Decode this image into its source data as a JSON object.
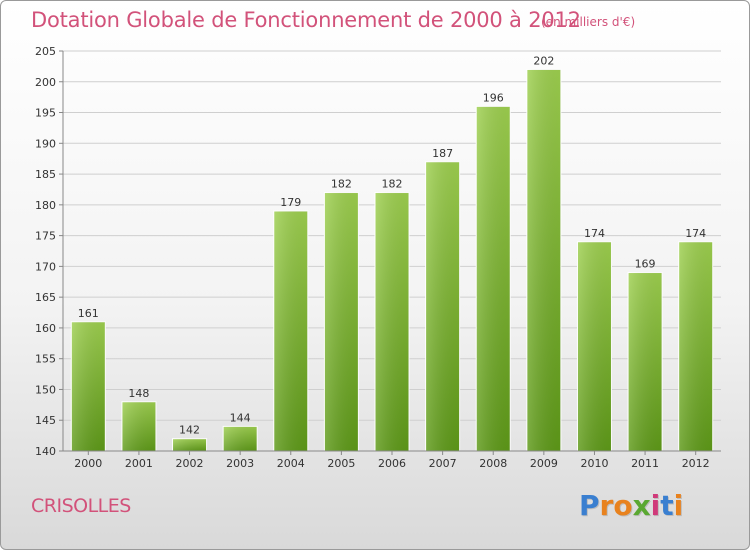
{
  "chart_data": {
    "type": "bar",
    "title": "Dotation Globale de Fonctionnement de 2000 à 2012",
    "subtitle": "(en milliers d'€)",
    "categories": [
      "2000",
      "2001",
      "2002",
      "2003",
      "2004",
      "2005",
      "2006",
      "2007",
      "2008",
      "2009",
      "2010",
      "2011",
      "2012"
    ],
    "values": [
      161,
      148,
      142,
      144,
      179,
      182,
      182,
      187,
      196,
      202,
      174,
      169,
      174
    ],
    "ylim": [
      140,
      205
    ],
    "yticks": [
      140,
      145,
      150,
      155,
      160,
      165,
      170,
      175,
      180,
      185,
      190,
      195,
      200,
      205
    ],
    "grid": true,
    "legend": "none",
    "bar_color": "#7cba33"
  },
  "footer": {
    "commune": "CRISOLLES",
    "logo": "Proxiti",
    "logo_colors": [
      "#3a7fd0",
      "#e8821e",
      "#e8821e",
      "#5aa832",
      "#d03a7a",
      "#3a7fd0",
      "#e8821e"
    ]
  }
}
